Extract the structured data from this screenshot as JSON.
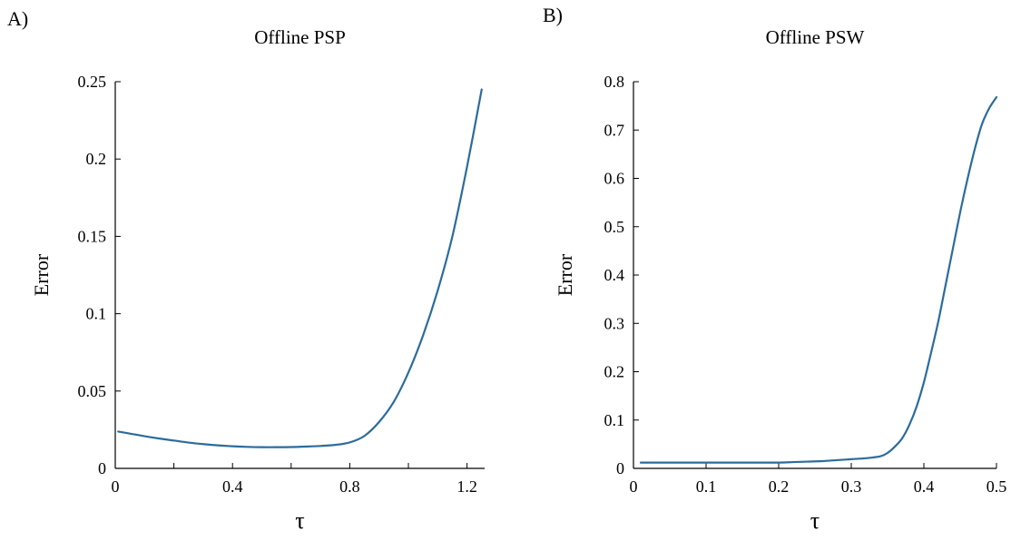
{
  "colors": {
    "line": "#2b6c9c",
    "axis": "#000000",
    "background": "#ffffff"
  },
  "chart_data": [
    {
      "type": "line",
      "panel_label": "A)",
      "title": "Offline PSP",
      "xlabel": "τ",
      "ylabel": "Error",
      "xlim": [
        0,
        1.26
      ],
      "ylim": [
        0,
        0.25
      ],
      "xticks": [
        0,
        0.4,
        0.8,
        1.2
      ],
      "xtick_labels": [
        "0",
        "0.4",
        "0.8",
        "1.2"
      ],
      "minor_xticks": [
        0.2,
        0.6,
        1.0
      ],
      "yticks": [
        0,
        0.05,
        0.1,
        0.15,
        0.2,
        0.25
      ],
      "ytick_labels": [
        "0",
        "0.05",
        "0.1",
        "0.15",
        "0.2",
        "0.25"
      ],
      "grid": false,
      "series": [
        {
          "x": [
            0.01,
            0.05,
            0.1,
            0.15,
            0.2,
            0.25,
            0.3,
            0.35,
            0.4,
            0.45,
            0.5,
            0.55,
            0.6,
            0.65,
            0.7,
            0.75,
            0.8,
            0.85,
            0.9,
            0.95,
            1.0,
            1.05,
            1.1,
            1.15,
            1.2,
            1.25
          ],
          "y": [
            0.0238,
            0.0225,
            0.0208,
            0.0193,
            0.018,
            0.0167,
            0.0157,
            0.0149,
            0.0143,
            0.0139,
            0.0137,
            0.0137,
            0.0138,
            0.0141,
            0.0145,
            0.0152,
            0.0168,
            0.021,
            0.03,
            0.043,
            0.062,
            0.086,
            0.115,
            0.15,
            0.195,
            0.245
          ]
        }
      ]
    },
    {
      "type": "line",
      "panel_label": "B)",
      "title": "Offline PSW",
      "xlabel": "τ",
      "ylabel": "Error",
      "xlim": [
        0,
        0.5
      ],
      "ylim": [
        0,
        0.8
      ],
      "xticks": [
        0,
        0.1,
        0.2,
        0.3,
        0.4,
        0.5
      ],
      "xtick_labels": [
        "0",
        "0.1",
        "0.2",
        "0.3",
        "0.4",
        "0.5"
      ],
      "minor_xticks": [],
      "yticks": [
        0,
        0.1,
        0.2,
        0.3,
        0.4,
        0.5,
        0.6,
        0.7,
        0.8
      ],
      "ytick_labels": [
        "0",
        "0.1",
        "0.2",
        "0.3",
        "0.4",
        "0.5",
        "0.6",
        "0.7",
        "0.8"
      ],
      "grid": false,
      "series": [
        {
          "x": [
            0.01,
            0.05,
            0.1,
            0.15,
            0.2,
            0.22,
            0.24,
            0.26,
            0.28,
            0.3,
            0.32,
            0.34,
            0.35,
            0.36,
            0.37,
            0.38,
            0.39,
            0.4,
            0.41,
            0.42,
            0.43,
            0.44,
            0.45,
            0.46,
            0.47,
            0.48,
            0.49,
            0.5
          ],
          "y": [
            0.012,
            0.012,
            0.012,
            0.012,
            0.012,
            0.013,
            0.014,
            0.015,
            0.017,
            0.019,
            0.021,
            0.025,
            0.032,
            0.045,
            0.062,
            0.09,
            0.128,
            0.178,
            0.24,
            0.305,
            0.38,
            0.455,
            0.53,
            0.598,
            0.66,
            0.712,
            0.745,
            0.768
          ]
        }
      ]
    }
  ]
}
